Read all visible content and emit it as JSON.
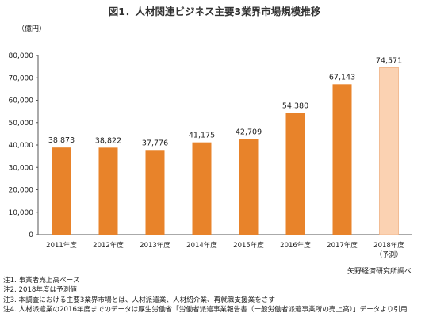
{
  "chart_data": {
    "type": "bar",
    "title": "図1．人材関連ビジネス主要3業界市場規模推移",
    "unit_label": "（億円）",
    "categories": [
      "2011年度",
      "2012年度",
      "2013年度",
      "2014年度",
      "2015年度",
      "2016年度",
      "2017年度",
      "2018年度"
    ],
    "category_sublabels": [
      "",
      "",
      "",
      "",
      "",
      "",
      "",
      "（予測）"
    ],
    "values": [
      38873,
      38822,
      37776,
      41175,
      42709,
      54380,
      67143,
      74571
    ],
    "value_labels": [
      "38,873",
      "38,822",
      "37,776",
      "41,175",
      "42,709",
      "54,380",
      "67,143",
      "74,571"
    ],
    "forecast": [
      false,
      false,
      false,
      false,
      false,
      false,
      false,
      true
    ],
    "ylim": [
      0,
      80000
    ],
    "yticks": [
      0,
      10000,
      20000,
      30000,
      40000,
      50000,
      60000,
      70000,
      80000
    ],
    "ytick_labels": [
      "0",
      "10,000",
      "20,000",
      "30,000",
      "40,000",
      "50,000",
      "60,000",
      "70,000",
      "80,000"
    ],
    "grid": false,
    "colors": {
      "actual": "#e8832a",
      "forecast": "#fbd2b2",
      "forecast_border": "#f0b183"
    }
  },
  "source": "矢野経済研究所調べ",
  "notes": [
    "注1. 事業者売上高ベース",
    "注2. 2018年度は予測値",
    "注3. 本調査における主要3業界市場とは、人材派遣業、人材紹介業、再就職支援業をさす",
    "注4. 人材派遣業の2016年度までのデータは厚生労働省「労働者派遣事業報告書（一般労働者派遣事業所の売上高）」データより引用"
  ]
}
